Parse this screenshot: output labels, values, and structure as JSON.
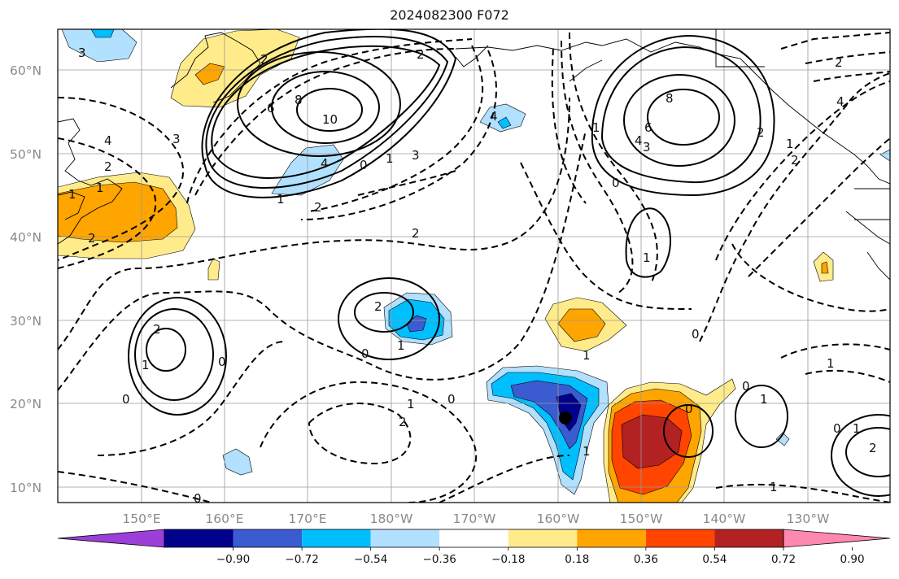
{
  "title": "2024082300 F072",
  "lat_labels": [
    "10°N",
    "20°N",
    "30°N",
    "40°N",
    "50°N",
    "60°N"
  ],
  "lon_labels": [
    "150°E",
    "160°E",
    "170°E",
    "180°W",
    "170°W",
    "160°W",
    "150°W",
    "140°W",
    "130°W"
  ],
  "colorbar": {
    "tick_labels": [
      "−0.90",
      "−0.72",
      "−0.54",
      "−0.36",
      "−0.18",
      "0.18",
      "0.36",
      "0.54",
      "0.72",
      "0.90"
    ],
    "colors": [
      "#9c3fd8",
      "#01018c",
      "#3b5bd0",
      "#00bfff",
      "#b2e0ff",
      "#ffffff",
      "#ffeb8a",
      "#ffa500",
      "#ff4500",
      "#b22222",
      "#ff88b0"
    ]
  },
  "contour_labels": [
    "3",
    "4",
    "2",
    "1",
    "1",
    "2",
    "3",
    "2",
    "6",
    "8",
    "10",
    "4",
    "0",
    "1",
    "3",
    "1",
    "2",
    "2",
    "4",
    "2",
    "6",
    "8",
    "4",
    "3",
    "0",
    "1",
    "2",
    "1",
    "2",
    "4",
    "2",
    "2",
    "1",
    "0",
    "0",
    "1",
    "2",
    "0",
    "1",
    "1",
    "0",
    "0",
    "1",
    "2",
    "0",
    "1",
    "0",
    "1",
    "2",
    "1",
    "0",
    "1",
    "1",
    "0"
  ],
  "marker": "typhoon-center"
}
